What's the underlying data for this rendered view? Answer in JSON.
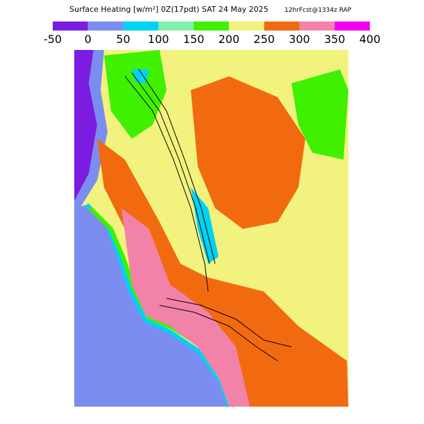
{
  "header": {
    "title": "Surface Heating [w/m²] 0Z(17pdt) SAT 24 May 2025",
    "forecast": "12hrFcst@1334z RAP"
  },
  "legend": {
    "ticks": [
      -50,
      0,
      50,
      100,
      150,
      200,
      250,
      300,
      350,
      400
    ],
    "colors": [
      "#7a1de0",
      "#7b8df0",
      "#00d2f2",
      "#7ff0a8",
      "#3ff000",
      "#f2f27e",
      "#f26a10",
      "#f282a8",
      "#f200f0"
    ]
  }
}
